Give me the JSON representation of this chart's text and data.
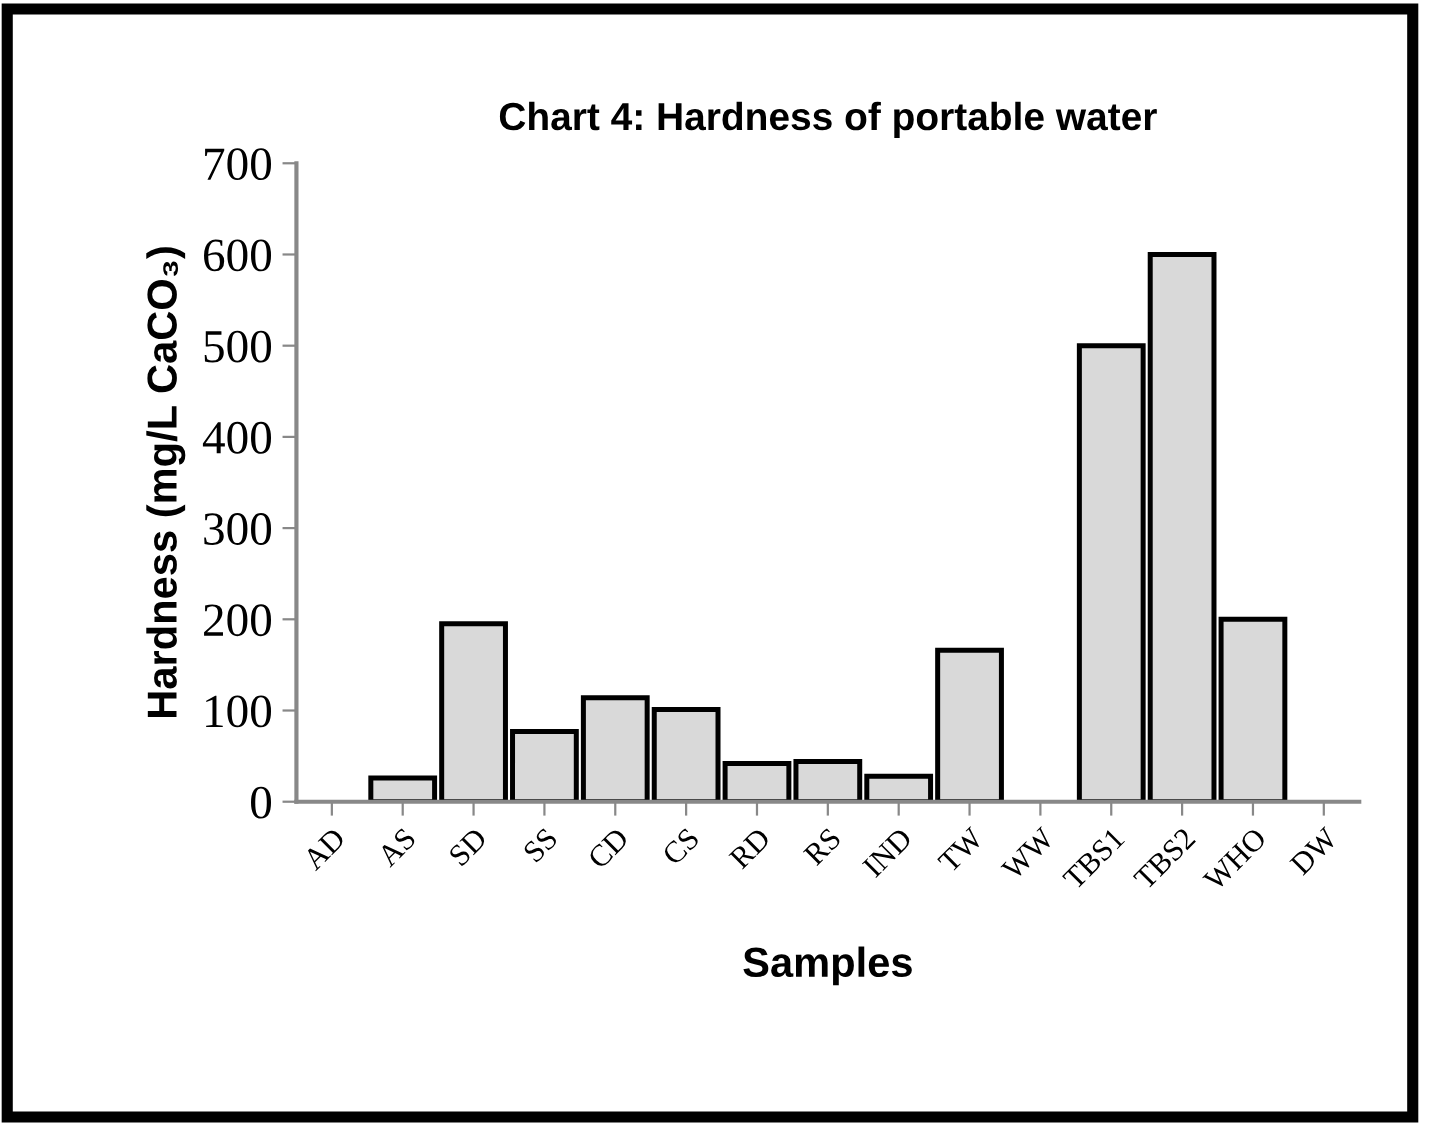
{
  "chart_data": {
    "type": "bar",
    "title": "Chart 4: Hardness of portable water",
    "xlabel": "Samples",
    "ylabel": "Hardness (mg/L CaCO₃)",
    "categories": [
      "AD",
      "AS",
      "SD",
      "SS",
      "CD",
      "CS",
      "RD",
      "RS",
      "IND",
      "TW",
      "WW",
      "TBS1",
      "TBS2",
      "WHO",
      "DW"
    ],
    "values": [
      null,
      26,
      195,
      77,
      114,
      101,
      42,
      44,
      28,
      166,
      null,
      500,
      600,
      200,
      null
    ],
    "color": "#d9d9d9",
    "ylim": [
      0,
      700
    ],
    "yticks": [
      0,
      100,
      200,
      300,
      400,
      500,
      600,
      700
    ],
    "grid": false,
    "legend": false
  }
}
